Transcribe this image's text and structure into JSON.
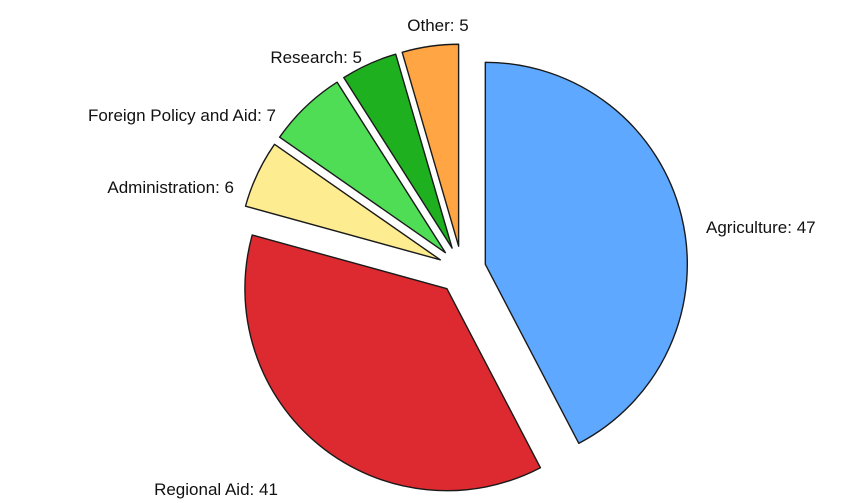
{
  "chart_data": {
    "type": "pie",
    "title": "",
    "slices": [
      {
        "label": "Agriculture",
        "value": 47,
        "color": "#5fa8ff"
      },
      {
        "label": "Regional Aid",
        "value": 41,
        "color": "#dd2a30"
      },
      {
        "label": "Administration",
        "value": 6,
        "color": "#fdec90"
      },
      {
        "label": "Foreign Policy and Aid",
        "value": 7,
        "color": "#4fdd55"
      },
      {
        "label": "Research",
        "value": 5,
        "color": "#1fb020"
      },
      {
        "label": "Other",
        "value": 5,
        "color": "#ffa543"
      }
    ],
    "exploded": true,
    "label_format": "{label}: {value}"
  }
}
